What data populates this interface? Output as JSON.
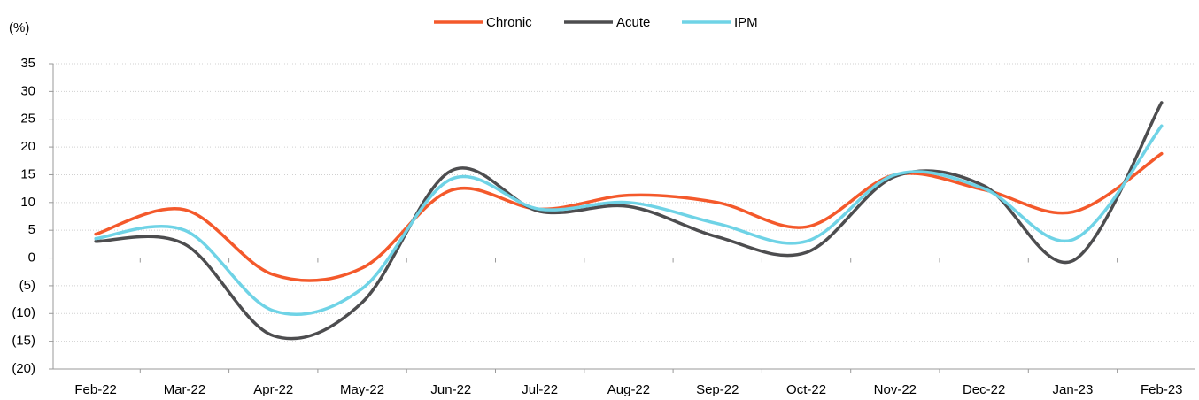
{
  "chart_data": {
    "type": "line",
    "y_label": "(%)",
    "categories": [
      "Feb-22",
      "Mar-22",
      "Apr-22",
      "May-22",
      "Jun-22",
      "Jul-22",
      "Aug-22",
      "Sep-22",
      "Oct-22",
      "Nov-22",
      "Dec-22",
      "Jan-23",
      "Feb-23"
    ],
    "series": [
      {
        "name": "Chronic",
        "color": "#f4592b",
        "values": [
          4.3,
          8.7,
          -3.0,
          -1.8,
          12.2,
          8.8,
          11.3,
          10.0,
          5.6,
          15.0,
          12.3,
          8.3,
          18.8
        ]
      },
      {
        "name": "Acute",
        "color": "#4d4d4f",
        "values": [
          3.0,
          2.5,
          -14.0,
          -8.0,
          15.7,
          8.4,
          9.3,
          3.8,
          1.0,
          14.7,
          13.0,
          -0.5,
          28.0
        ]
      },
      {
        "name": "IPM",
        "color": "#6fd3e6",
        "values": [
          3.5,
          5.0,
          -9.5,
          -5.5,
          14.2,
          8.8,
          10.0,
          6.2,
          3.0,
          15.0,
          12.5,
          3.3,
          23.8
        ]
      }
    ],
    "ylim": [
      -20,
      35
    ],
    "yticks": [
      {
        "value": -20,
        "label": "(20)"
      },
      {
        "value": -15,
        "label": "(15)"
      },
      {
        "value": -10,
        "label": "(10)"
      },
      {
        "value": -5,
        "label": "(5)"
      },
      0,
      5,
      10,
      15,
      20,
      25,
      30,
      35
    ],
    "grid": true,
    "smooth": true,
    "legend": "top"
  }
}
